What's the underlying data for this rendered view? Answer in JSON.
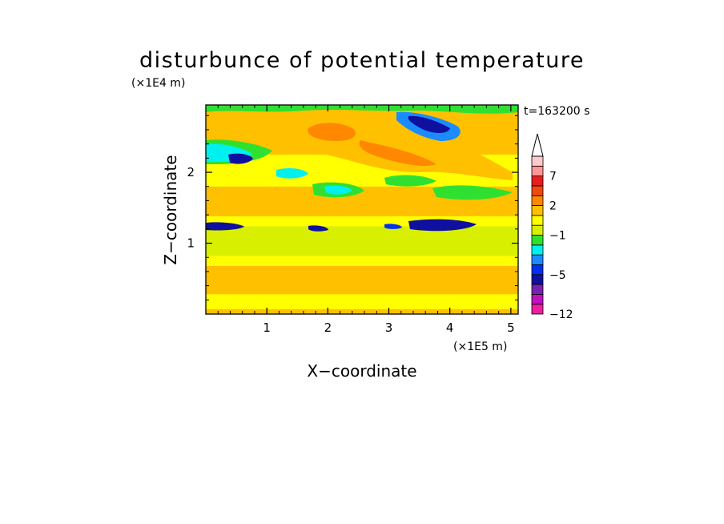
{
  "chart_data": {
    "type": "heatmap",
    "title": "disturbunce of potential temperature",
    "xlabel": "X−coordinate",
    "ylabel": "Z−coordinate",
    "x_scale_label": "(×1E5 m)",
    "y_scale_label": "(×1E4 m)",
    "time_label": "t=163200 s",
    "xlim": [
      0,
      5.12
    ],
    "ylim": [
      0,
      2.95
    ],
    "x_ticks": [
      "1",
      "2",
      "3",
      "4",
      "5"
    ],
    "y_ticks": [
      "1",
      "2"
    ],
    "legend_placement": "right",
    "colorbar": {
      "levels": [
        -12,
        -10,
        -8,
        -6,
        -5,
        -4,
        -3,
        -2,
        -1,
        0,
        1,
        2,
        3,
        5,
        7,
        9,
        11
      ],
      "labels": [
        "−12",
        "−5",
        "−1",
        "2",
        "7"
      ],
      "colors": [
        "#ee1ea0",
        "#c010c0",
        "#7a20b0",
        "#1010a0",
        "#0030f0",
        "#1a8cff",
        "#00f0f0",
        "#30e030",
        "#d8f000",
        "#ffff00",
        "#ffc000",
        "#ff8800",
        "#f04a10",
        "#e81e1e",
        "#ff9696",
        "#fccacc"
      ],
      "extend": "max"
    },
    "field_bands": [
      {
        "z": [
          0.0,
          0.07
        ],
        "value": 1.2
      },
      {
        "z": [
          0.07,
          0.28
        ],
        "value": 0.6
      },
      {
        "z": [
          0.28,
          0.68
        ],
        "value": 1.0
      },
      {
        "z": [
          0.68,
          0.82
        ],
        "value": 0.4
      },
      {
        "z": [
          0.82,
          1.24
        ],
        "value": -0.6
      },
      {
        "z": [
          1.24,
          1.38
        ],
        "value": 0.4
      },
      {
        "z": [
          1.38,
          1.8
        ],
        "value": 1.0
      },
      {
        "z": [
          1.8,
          2.25
        ],
        "value": 0.6
      },
      {
        "z": [
          2.25,
          2.95
        ],
        "value": 1.5
      }
    ]
  }
}
